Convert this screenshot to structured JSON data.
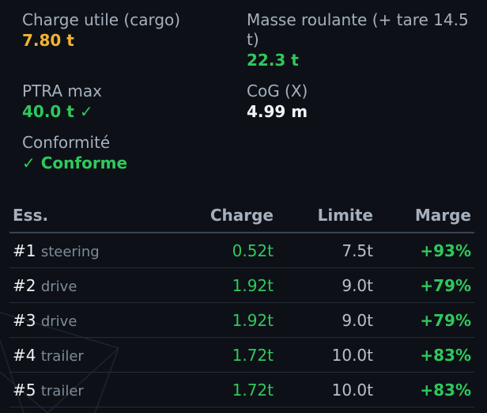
{
  "summary": {
    "cargo": {
      "label": "Charge utile (cargo)",
      "value": "7.80 t"
    },
    "rolling_mass": {
      "label": "Masse roulante (+ tare 14.5 t)",
      "value": "22.3 t"
    },
    "ptra": {
      "label": "PTRA max",
      "value": "40.0 t ✓"
    },
    "cog": {
      "label": "CoG (X)",
      "value": "4.99 m"
    },
    "compliance": {
      "label": "Conformité",
      "value": "✓ Conforme"
    }
  },
  "table": {
    "headers": {
      "axle": "Ess.",
      "charge": "Charge",
      "limit": "Limite",
      "margin": "Marge"
    },
    "rows": [
      {
        "num": "#1",
        "type": "steering",
        "charge": "0.52t",
        "limit": "7.5t",
        "margin": "+93%"
      },
      {
        "num": "#2",
        "type": "drive",
        "charge": "1.92t",
        "limit": "9.0t",
        "margin": "+79%"
      },
      {
        "num": "#3",
        "type": "drive",
        "charge": "1.92t",
        "limit": "9.0t",
        "margin": "+79%"
      },
      {
        "num": "#4",
        "type": "trailer",
        "charge": "1.72t",
        "limit": "10.0t",
        "margin": "+83%"
      },
      {
        "num": "#5",
        "type": "trailer",
        "charge": "1.72t",
        "limit": "10.0t",
        "margin": "+83%"
      }
    ]
  },
  "colors": {
    "background": "#0d1117",
    "amber": "#f2b233",
    "green": "#2fc85c",
    "label": "#a6b0bd"
  }
}
